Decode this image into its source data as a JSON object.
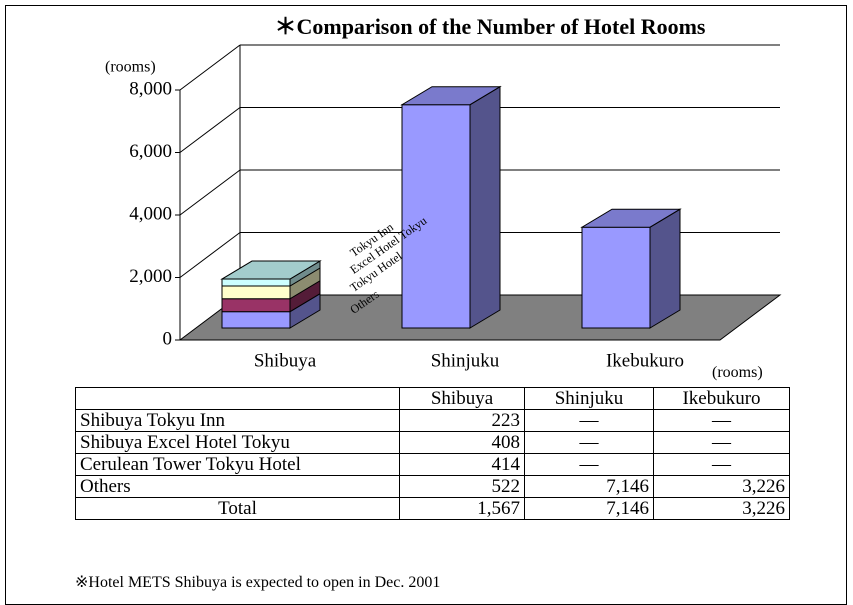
{
  "chart_data": {
    "type": "bar",
    "stacked": true,
    "title": "＊Comparison of the Number of Hotel Rooms",
    "y_unit": "(rooms)",
    "categories": [
      "Shibuya",
      "Shinjuku",
      "Ikebukuro"
    ],
    "series": [
      {
        "name": "Others",
        "color": "#9999ff",
        "values": [
          522,
          7146,
          3226
        ]
      },
      {
        "name": "Tokyu Hotel",
        "color": "#993366",
        "values": [
          414,
          null,
          null
        ]
      },
      {
        "name": "Excel Hotel Tokyu",
        "color": "#ffffcc",
        "values": [
          408,
          null,
          null
        ]
      },
      {
        "name": "Tokyu Inn",
        "color": "#ccffff",
        "values": [
          223,
          null,
          null
        ]
      }
    ],
    "ylim": [
      0,
      8000
    ],
    "yticks": [
      0,
      {
        "value": 2000,
        "label": "2,000"
      },
      {
        "value": 4000,
        "label": "4,000"
      },
      {
        "value": 6000,
        "label": "6,000"
      },
      {
        "value": 8000,
        "label": "8,000"
      }
    ],
    "grid": true
  },
  "table": {
    "unit": "(rooms)",
    "columns": [
      "Shibuya",
      "Shinjuku",
      "Ikebukuro"
    ],
    "rows": [
      {
        "label": "Shibuya Tokyu Inn",
        "cells": [
          "223",
          "—",
          "—"
        ]
      },
      {
        "label": "Shibuya Excel Hotel Tokyu",
        "cells": [
          "408",
          "—",
          "—"
        ]
      },
      {
        "label": "Cerulean Tower Tokyu Hotel",
        "cells": [
          "414",
          "—",
          "—"
        ]
      },
      {
        "label": "Others",
        "cells": [
          "522",
          "7,146",
          "3,226"
        ]
      },
      {
        "label": "Total",
        "cells": [
          "1,567",
          "7,146",
          "3,226"
        ]
      }
    ]
  },
  "note": "※Hotel METS Shibuya is expected to open in Dec. 2001"
}
